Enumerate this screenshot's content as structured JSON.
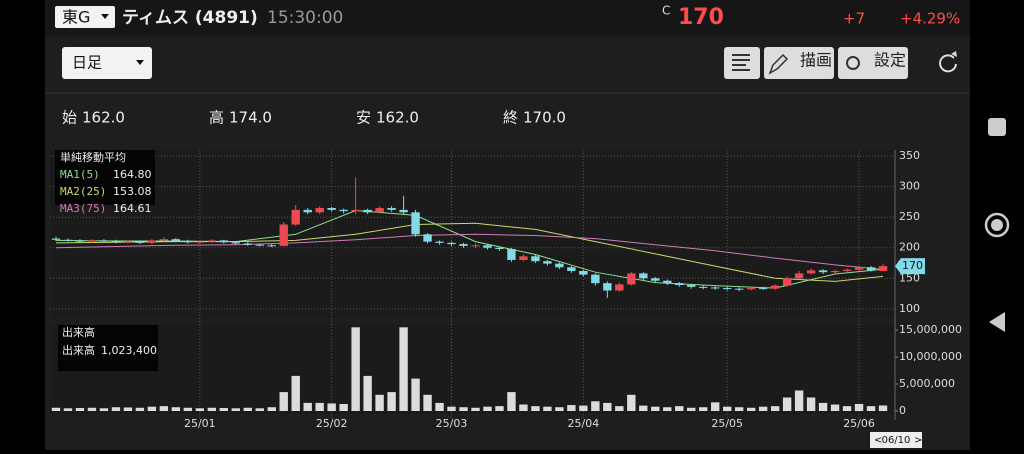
{
  "header": {
    "market": "東G",
    "name": "ティムス (4891)",
    "time": "15:30:00",
    "price_prefix": "C",
    "price": 170,
    "change": "+7",
    "change_pct": "+4.29%"
  },
  "toolbar": {
    "period": "日足",
    "draw": "描画",
    "settings": "設定"
  },
  "ohlc": [
    {
      "label": "始",
      "value": "162.0"
    },
    {
      "label": "高",
      "value": "174.0"
    },
    {
      "label": "安",
      "value": "162.0"
    },
    {
      "label": "終",
      "value": "170.0"
    }
  ],
  "chart_data": {
    "type": "candlestick",
    "legend_title": "単純移動平均",
    "up_color": "#ec4a50",
    "down_color": "#80dbe8",
    "open": [
      215,
      213,
      212,
      210,
      212,
      211,
      209,
      210,
      208,
      212,
      214,
      211,
      209,
      210,
      212,
      209,
      207,
      205,
      204,
      203,
      238,
      262,
      258,
      265,
      262,
      260,
      262,
      258,
      265,
      262,
      258,
      222,
      210,
      208,
      206,
      203,
      204,
      200,
      198,
      180,
      186,
      178,
      174,
      168,
      162,
      156,
      142,
      130,
      140,
      158,
      150,
      146,
      142,
      139,
      136,
      135,
      134,
      133,
      132,
      134,
      133,
      138,
      150,
      158,
      163,
      160,
      162,
      164,
      168,
      162
    ],
    "high": [
      218,
      215,
      214,
      214,
      214,
      213,
      212,
      212,
      214,
      217,
      216,
      213,
      212,
      214,
      213,
      211,
      209,
      207,
      206,
      242,
      270,
      265,
      268,
      267,
      264,
      315,
      264,
      268,
      268,
      285,
      262,
      224,
      212,
      210,
      208,
      207,
      206,
      202,
      200,
      189,
      188,
      180,
      176,
      170,
      164,
      158,
      145,
      143,
      160,
      160,
      152,
      148,
      144,
      141,
      138,
      137,
      136,
      135,
      136,
      136,
      140,
      153,
      162,
      166,
      165,
      164,
      166,
      170,
      170,
      174
    ],
    "low": [
      211,
      210,
      208,
      208,
      209,
      207,
      207,
      206,
      206,
      210,
      209,
      207,
      207,
      208,
      207,
      205,
      203,
      202,
      201,
      202,
      236,
      255,
      255,
      259,
      256,
      255,
      255,
      256,
      259,
      255,
      218,
      207,
      205,
      203,
      200,
      200,
      197,
      195,
      177,
      178,
      175,
      171,
      165,
      159,
      153,
      138,
      118,
      128,
      138,
      147,
      143,
      139,
      136,
      133,
      132,
      131,
      130,
      129,
      130,
      131,
      131,
      136,
      148,
      156,
      157,
      158,
      160,
      162,
      161,
      162
    ],
    "close": [
      213,
      212,
      210,
      212,
      211,
      209,
      210,
      208,
      212,
      214,
      211,
      209,
      210,
      212,
      209,
      207,
      205,
      204,
      203,
      238,
      262,
      258,
      265,
      262,
      260,
      262,
      258,
      265,
      262,
      258,
      222,
      210,
      208,
      206,
      203,
      204,
      200,
      198,
      180,
      186,
      178,
      174,
      168,
      162,
      156,
      142,
      130,
      140,
      158,
      150,
      146,
      142,
      139,
      136,
      135,
      134,
      133,
      132,
      134,
      133,
      138,
      150,
      158,
      163,
      160,
      162,
      164,
      168,
      163,
      170
    ],
    "volume": [
      600000,
      500000,
      550000,
      600000,
      500000,
      700000,
      650000,
      600000,
      800000,
      900000,
      700000,
      600000,
      500000,
      600000,
      550000,
      500000,
      600000,
      500000,
      700000,
      3500000,
      6500000,
      1500000,
      1500000,
      1400000,
      1300000,
      15500000,
      6500000,
      3000000,
      3500000,
      15500000,
      6000000,
      3000000,
      1500000,
      800000,
      700000,
      600000,
      800000,
      900000,
      3500000,
      1200000,
      900000,
      800000,
      700000,
      1100000,
      1000000,
      1800000,
      1500000,
      900000,
      3000000,
      1000000,
      800000,
      700000,
      900000,
      600000,
      700000,
      1600000,
      800000,
      700000,
      600000,
      800000,
      900000,
      2500000,
      3800000,
      2500000,
      1500000,
      1200000,
      900000,
      1300000,
      900000,
      1023400
    ],
    "volume_title": "出来高",
    "volume_label": "出来高",
    "volume_last_label": "1,023,400",
    "volume_color": "#dcdcdc",
    "ma": [
      {
        "name": "MA1(5)",
        "color": "#8ee08e",
        "x": [
          0,
          5,
          10,
          15,
          20,
          25,
          30,
          35,
          40,
          45,
          50,
          55,
          60,
          65,
          69
        ],
        "values": [
          212,
          211,
          211,
          210,
          222,
          261,
          253,
          210,
          189,
          160,
          143,
          138,
          134,
          157,
          164.8
        ],
        "last_label": "164.80"
      },
      {
        "name": "MA2(25)",
        "color": "#c8d86a",
        "x": [
          0,
          5,
          10,
          15,
          20,
          25,
          30,
          35,
          40,
          45,
          50,
          55,
          60,
          65,
          69
        ],
        "values": [
          208,
          209,
          210,
          210,
          212,
          222,
          238,
          240,
          230,
          210,
          190,
          170,
          150,
          145,
          153.08
        ],
        "last_label": "153.08"
      },
      {
        "name": "MA3(75)",
        "color": "#d07ab8",
        "x": [
          0,
          5,
          10,
          15,
          20,
          25,
          30,
          35,
          40,
          45,
          50,
          55,
          60,
          65,
          69
        ],
        "values": [
          200,
          202,
          204,
          205,
          208,
          213,
          220,
          222,
          220,
          215,
          205,
          195,
          183,
          172,
          164.61
        ],
        "last_label": "164.61"
      }
    ],
    "xlim": [
      -0.5,
      70
    ],
    "xticks": [
      {
        "value": 12,
        "label": "25/01"
      },
      {
        "value": 23,
        "label": "25/02"
      },
      {
        "value": 33,
        "label": "25/03"
      },
      {
        "value": 44,
        "label": "25/04"
      },
      {
        "value": 56,
        "label": "25/05"
      },
      {
        "value": 67,
        "label": "25/06"
      }
    ],
    "ylim": [
      85,
      360
    ],
    "yticks": [
      100,
      150,
      200,
      250,
      300,
      350
    ],
    "volume_ylim": [
      0,
      15000000
    ],
    "volume_ticks": [
      0,
      {
        "value": 5000000,
        "label": "5,000,000"
      },
      {
        "value": 10000000,
        "label": "10,000,000"
      },
      {
        "value": 15000000,
        "label": "15,000,000"
      }
    ],
    "grid": true,
    "cursor_label": "06/10"
  }
}
